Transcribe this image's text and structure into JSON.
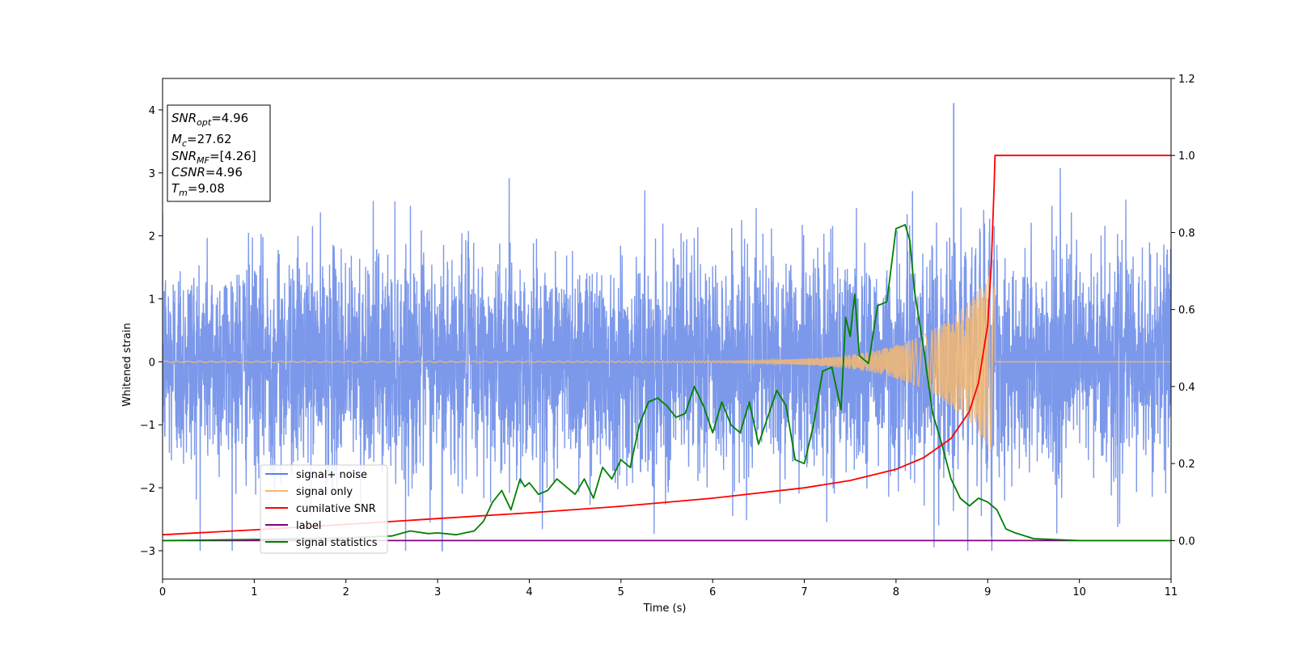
{
  "chart_data": {
    "type": "line",
    "xlabel": "Time (s)",
    "ylabel": "Whitened strain",
    "xlim": [
      0,
      11
    ],
    "ylim": [
      -3.45,
      4.5
    ],
    "y2lim": [
      -0.1,
      1.2
    ],
    "x_ticks": [
      "0",
      "1",
      "2",
      "3",
      "4",
      "5",
      "6",
      "7",
      "8",
      "9",
      "10",
      "11"
    ],
    "y_ticks": [
      "−3",
      "−2",
      "−1",
      "0",
      "1",
      "2",
      "3",
      "4"
    ],
    "y2_ticks": [
      "0.0",
      "0.2",
      "0.4",
      "0.6",
      "0.8",
      "1.0",
      "1.2"
    ],
    "grid": false,
    "legend_position": "lower-left",
    "info_box": {
      "snr_opt_label": "SNR",
      "snr_opt_sub": "opt",
      "snr_opt_value": "=4.96",
      "mc_label": "M",
      "mc_sub": "c",
      "mc_value": "=27.62",
      "snr_mf_label": "SNR",
      "snr_mf_sub": "MF",
      "snr_mf_value": "=[4.26]",
      "csnr_label": "CSNR",
      "csnr_value": "=4.96",
      "tm_label": "T",
      "tm_sub": "m",
      "tm_value": "=9.08"
    },
    "series": [
      {
        "name": "signal+ noise",
        "axis": "left",
        "color": "#5b7ee5",
        "description_values": {
          "noise_std": 0.85,
          "max_peak_x": 8.63,
          "max_peak_y": 4.17,
          "min_peak_x": 3.05,
          "min_peak_y": -3.07
        }
      },
      {
        "name": "signal only",
        "axis": "left",
        "color": "#f5b971",
        "chirp": {
          "start": 0,
          "end": 9.08,
          "amplitude_end": 1.5
        }
      },
      {
        "name": "cumilative SNR",
        "axis": "right",
        "color": "#ff0000",
        "x": [
          0,
          1,
          2,
          3,
          4,
          5,
          6,
          7,
          7.5,
          8,
          8.3,
          8.6,
          8.8,
          8.9,
          9.0,
          9.04,
          9.07,
          9.08,
          9.5,
          10,
          11
        ],
        "y": [
          0.015,
          0.028,
          0.042,
          0.057,
          0.072,
          0.089,
          0.11,
          0.137,
          0.156,
          0.185,
          0.215,
          0.265,
          0.335,
          0.41,
          0.56,
          0.72,
          0.92,
          1.0,
          1.0,
          1.0,
          1.0
        ]
      },
      {
        "name": "label",
        "axis": "right",
        "color": "#800080",
        "x": [
          0,
          11
        ],
        "y": [
          0.0,
          0.0
        ]
      },
      {
        "name": "signal statistics",
        "axis": "right",
        "color": "#008000",
        "x": [
          0,
          1,
          2,
          2.5,
          2.7,
          2.9,
          3.0,
          3.2,
          3.4,
          3.5,
          3.6,
          3.7,
          3.8,
          3.9,
          3.95,
          4.0,
          4.1,
          4.2,
          4.3,
          4.4,
          4.5,
          4.6,
          4.7,
          4.8,
          4.9,
          5.0,
          5.1,
          5.2,
          5.3,
          5.4,
          5.5,
          5.6,
          5.7,
          5.8,
          5.9,
          6.0,
          6.1,
          6.2,
          6.3,
          6.4,
          6.5,
          6.6,
          6.7,
          6.8,
          6.9,
          7.0,
          7.1,
          7.2,
          7.3,
          7.4,
          7.45,
          7.5,
          7.55,
          7.6,
          7.7,
          7.8,
          7.9,
          8.0,
          8.1,
          8.15,
          8.2,
          8.3,
          8.4,
          8.5,
          8.6,
          8.7,
          8.8,
          8.9,
          9.0,
          9.1,
          9.2,
          9.3,
          9.5,
          10,
          11
        ],
        "y": [
          0.0,
          0.003,
          0.007,
          0.012,
          0.025,
          0.018,
          0.02,
          0.015,
          0.025,
          0.05,
          0.1,
          0.13,
          0.08,
          0.16,
          0.14,
          0.15,
          0.12,
          0.13,
          0.16,
          0.14,
          0.12,
          0.16,
          0.11,
          0.19,
          0.16,
          0.21,
          0.19,
          0.3,
          0.36,
          0.37,
          0.35,
          0.32,
          0.33,
          0.4,
          0.35,
          0.28,
          0.36,
          0.3,
          0.28,
          0.36,
          0.25,
          0.32,
          0.39,
          0.35,
          0.21,
          0.2,
          0.3,
          0.44,
          0.45,
          0.34,
          0.58,
          0.53,
          0.64,
          0.48,
          0.46,
          0.61,
          0.62,
          0.81,
          0.82,
          0.78,
          0.65,
          0.5,
          0.33,
          0.25,
          0.16,
          0.11,
          0.09,
          0.11,
          0.1,
          0.08,
          0.03,
          0.02,
          0.005,
          0.0,
          0.0
        ]
      }
    ]
  },
  "legend": {
    "items": [
      {
        "label": "signal+ noise",
        "color": "#5b7ee5"
      },
      {
        "label": "signal only",
        "color": "#f5b971"
      },
      {
        "label": "cumilative SNR",
        "color": "#ff0000"
      },
      {
        "label": "label",
        "color": "#800080"
      },
      {
        "label": "signal statistics",
        "color": "#008000"
      }
    ]
  }
}
